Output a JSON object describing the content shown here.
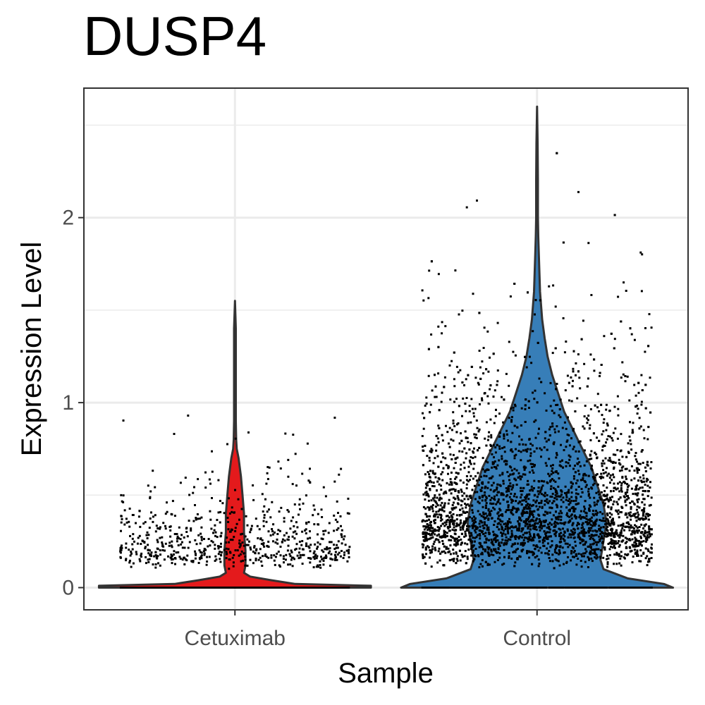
{
  "chart_data": {
    "type": "violin",
    "title": "DUSP4",
    "xlabel": "Sample",
    "ylabel": "Expression Level",
    "ylim": [
      -0.12,
      2.7
    ],
    "yticks": [
      0,
      1,
      2
    ],
    "ytick_labels": [
      "0",
      "1",
      "2"
    ],
    "grid": true,
    "categories": [
      "Cetuximab",
      "Control"
    ],
    "series": [
      {
        "name": "Cetuximab",
        "color": "#e41a1c",
        "max": 1.55,
        "density": [
          [
            0.0,
            0.45
          ],
          [
            0.01,
            0.45
          ],
          [
            0.02,
            0.2
          ],
          [
            0.04,
            0.12
          ],
          [
            0.06,
            0.05
          ],
          [
            0.08,
            0.03
          ],
          [
            0.12,
            0.035
          ],
          [
            0.2,
            0.035
          ],
          [
            0.3,
            0.03
          ],
          [
            0.4,
            0.03
          ],
          [
            0.5,
            0.025
          ],
          [
            0.6,
            0.02
          ],
          [
            0.7,
            0.012
          ],
          [
            0.75,
            0.006
          ],
          [
            0.8,
            0.004
          ],
          [
            0.9,
            0.003
          ],
          [
            1.0,
            0.003
          ],
          [
            1.2,
            0.003
          ],
          [
            1.4,
            0.003
          ],
          [
            1.55,
            0.0
          ]
        ]
      },
      {
        "name": "Control",
        "color": "#377eb8",
        "max": 2.6,
        "density": [
          [
            0.0,
            0.45
          ],
          [
            0.02,
            0.42
          ],
          [
            0.05,
            0.3
          ],
          [
            0.1,
            0.22
          ],
          [
            0.15,
            0.21
          ],
          [
            0.25,
            0.22
          ],
          [
            0.35,
            0.23
          ],
          [
            0.45,
            0.22
          ],
          [
            0.55,
            0.2
          ],
          [
            0.65,
            0.18
          ],
          [
            0.75,
            0.15
          ],
          [
            0.85,
            0.12
          ],
          [
            0.95,
            0.09
          ],
          [
            1.05,
            0.07
          ],
          [
            1.15,
            0.05
          ],
          [
            1.25,
            0.035
          ],
          [
            1.35,
            0.025
          ],
          [
            1.45,
            0.017
          ],
          [
            1.6,
            0.01
          ],
          [
            1.8,
            0.006
          ],
          [
            1.9,
            0.004
          ],
          [
            2.0,
            0.003
          ],
          [
            2.2,
            0.003
          ],
          [
            2.4,
            0.002
          ],
          [
            2.6,
            0.0
          ]
        ]
      }
    ],
    "jitter_points": {
      "Cetuximab": {
        "n": 1300,
        "zero_fraction": 0.45,
        "scale": 0.22,
        "max": 1.55
      },
      "Control": {
        "n": 4200,
        "zero_fraction": 0.15,
        "scale": 0.5,
        "max": 2.6
      }
    }
  }
}
